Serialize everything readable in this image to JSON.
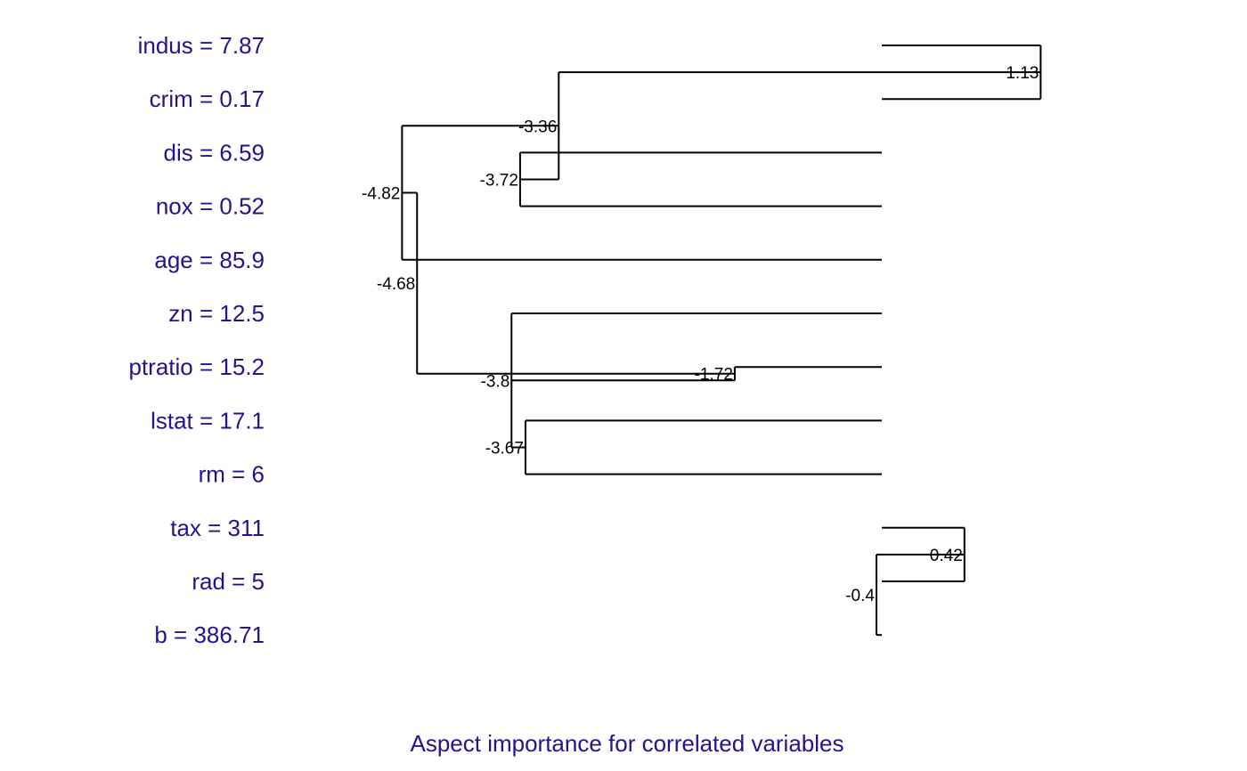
{
  "chart_data": {
    "type": "dendrogram",
    "leaves": [
      {
        "id": "indus",
        "label": "indus = 7.87"
      },
      {
        "id": "crim",
        "label": "crim = 0.17"
      },
      {
        "id": "dis",
        "label": "dis = 6.59"
      },
      {
        "id": "nox",
        "label": "nox = 0.52"
      },
      {
        "id": "age",
        "label": "age = 85.9"
      },
      {
        "id": "zn",
        "label": "zn = 12.5"
      },
      {
        "id": "ptratio",
        "label": "ptratio = 15.2"
      },
      {
        "id": "lstat",
        "label": "lstat = 17.1"
      },
      {
        "id": "rm",
        "label": "rm = 6"
      },
      {
        "id": "tax",
        "label": "tax = 311"
      },
      {
        "id": "rad",
        "label": "rad = 5"
      },
      {
        "id": "b",
        "label": "b = 386.71"
      }
    ],
    "nodes": [
      {
        "id": "n1",
        "children": [
          "indus",
          "crim"
        ],
        "importance": 1.13,
        "label": "1.13"
      },
      {
        "id": "n2",
        "children": [
          "dis",
          "nox"
        ],
        "importance": -3.72,
        "label": "-3.72"
      },
      {
        "id": "n3",
        "children": [
          "n1",
          "n2"
        ],
        "importance": -3.36,
        "label": "-3.36"
      },
      {
        "id": "n4",
        "children": [
          "n3",
          "age"
        ],
        "importance": -4.82,
        "label": "-4.82"
      },
      {
        "id": "n5",
        "children": [
          "lstat",
          "rm"
        ],
        "importance": -3.67,
        "label": "-3.67"
      },
      {
        "id": "n6",
        "children": [
          "zn",
          "n5"
        ],
        "importance": -3.8,
        "label": "-3.8"
      },
      {
        "id": "n7",
        "children": [
          "n6",
          "ptratio"
        ],
        "importance": -1.72,
        "label": "-1.72"
      },
      {
        "id": "n8",
        "children": [
          "n4",
          "n7"
        ],
        "importance": -4.68,
        "label": "-4.68"
      },
      {
        "id": "n9",
        "children": [
          "tax",
          "rad"
        ],
        "importance": 0.42,
        "label": "0.42"
      },
      {
        "id": "n10",
        "children": [
          "n9",
          "b"
        ],
        "importance": -0.4,
        "label": "-0.4"
      }
    ],
    "xlim": [
      -5.0,
      1.5
    ],
    "caption": "Aspect importance for correlated variables"
  }
}
